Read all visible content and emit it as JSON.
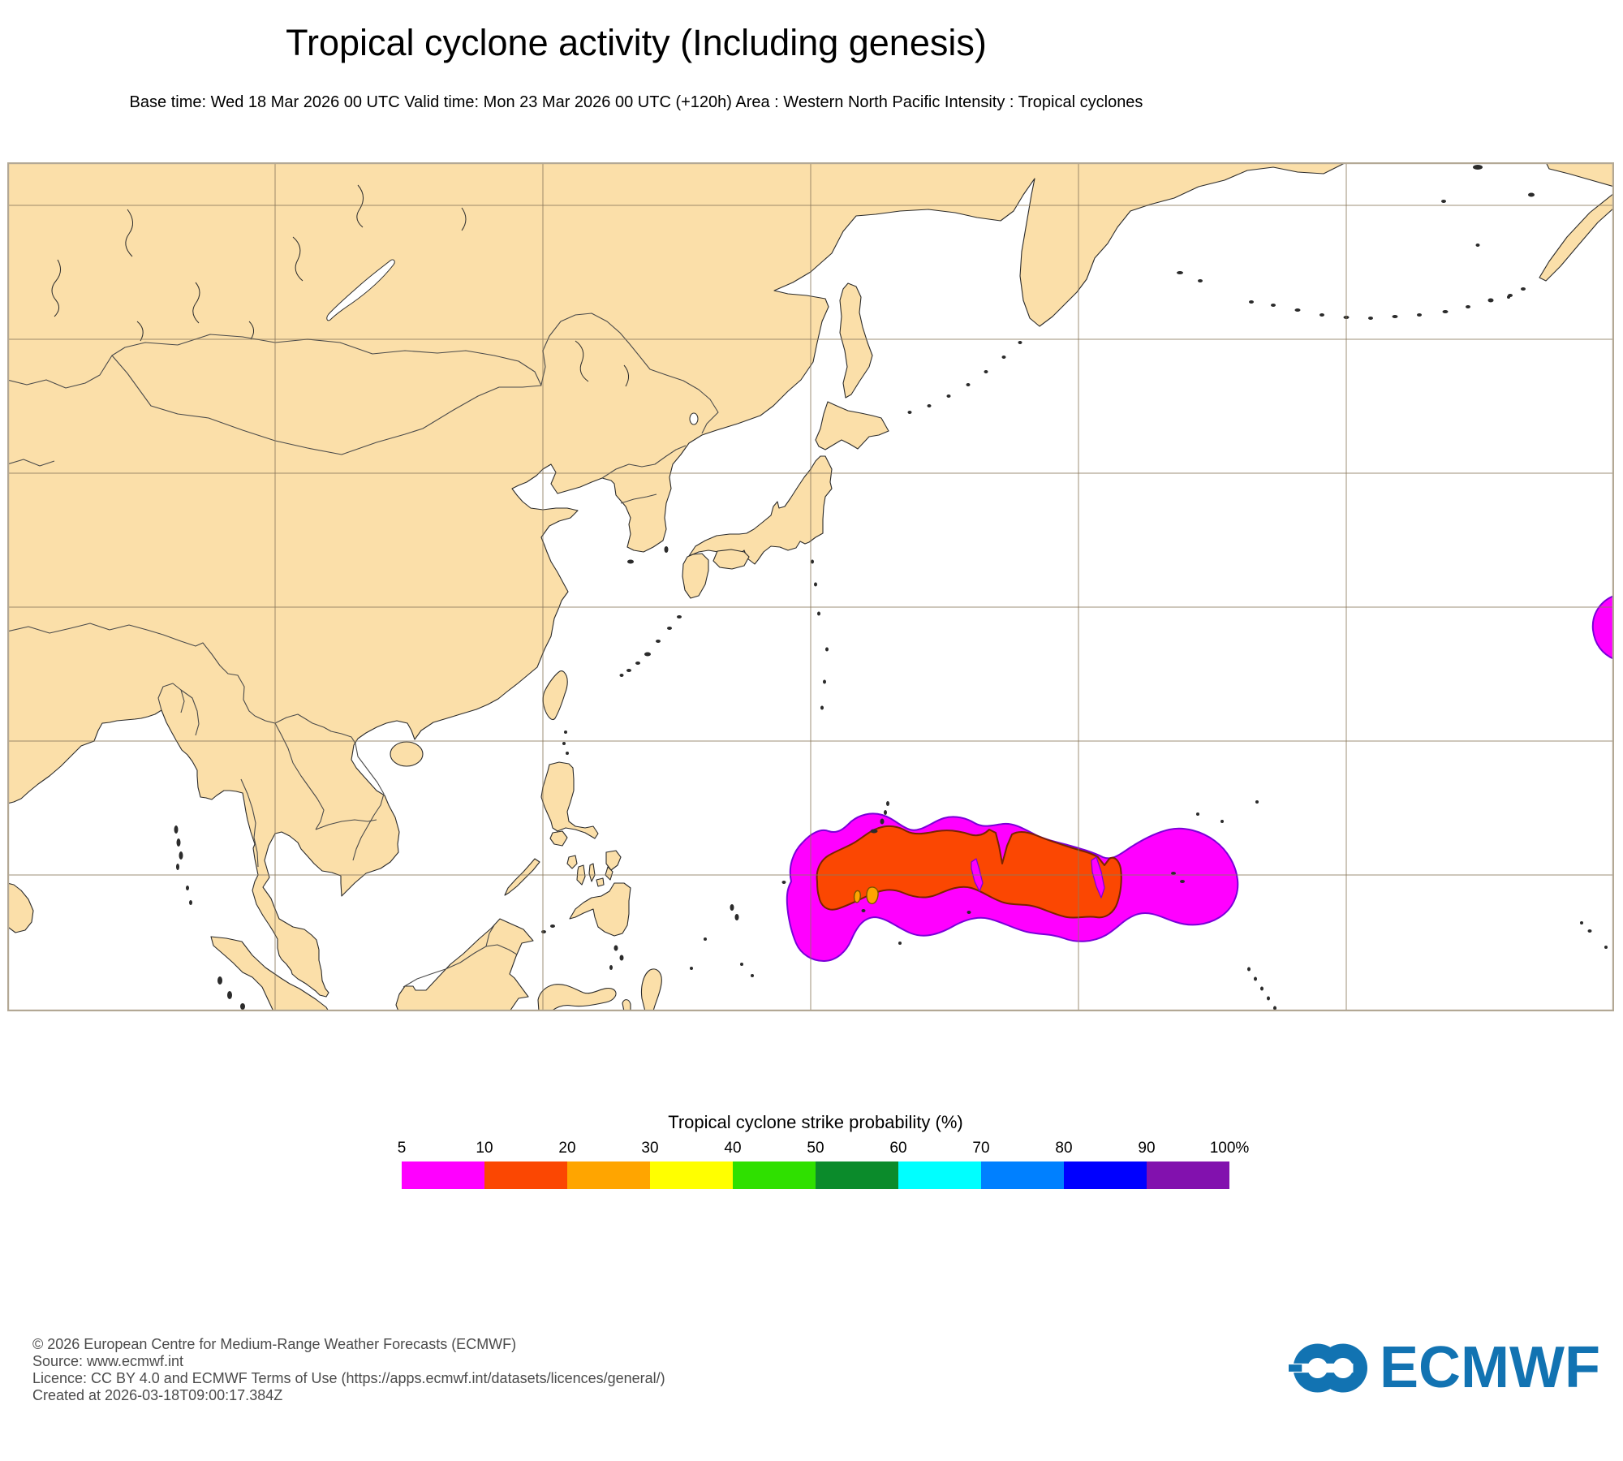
{
  "header": {
    "title": "Tropical cyclone activity (Including genesis)",
    "subtitle": "Base time: Wed 18 Mar 2026 00 UTC Valid time: Mon 23 Mar 2026 00 UTC (+120h) Area : Western North Pacific Intensity : Tropical cyclones"
  },
  "legend": {
    "title": "Tropical cyclone strike probability (%)",
    "ticks": [
      "5",
      "10",
      "20",
      "30",
      "40",
      "50",
      "60",
      "70",
      "80",
      "90",
      "100%"
    ],
    "bins": [
      {
        "label": "5-10",
        "color": "#ff00ff"
      },
      {
        "label": "10-20",
        "color": "#fb4702"
      },
      {
        "label": "20-30",
        "color": "#ffa500"
      },
      {
        "label": "30-40",
        "color": "#ffff00"
      },
      {
        "label": "40-50",
        "color": "#2fe000"
      },
      {
        "label": "50-60",
        "color": "#0b8b2b"
      },
      {
        "label": "60-70",
        "color": "#00ffff"
      },
      {
        "label": "70-80",
        "color": "#0080ff"
      },
      {
        "label": "80-90",
        "color": "#0000ff"
      },
      {
        "label": "90-100",
        "color": "#8211ae"
      }
    ]
  },
  "map": {
    "areas": [
      {
        "name": "strike-probability-5-10-percent",
        "color": "#ff00ff"
      },
      {
        "name": "strike-probability-10-20-percent",
        "color": "#fb4702"
      },
      {
        "name": "strike-probability-20-30-percent",
        "color": "#ffa500"
      }
    ]
  },
  "footer": {
    "lines": [
      "© 2026 European Centre for Medium-Range Weather Forecasts (ECMWF)",
      "Source: www.ecmwf.int",
      "Licence: CC BY 4.0 and ECMWF Terms of Use (https://apps.ecmwf.int/datasets/licences/general/)",
      "Created at 2026-03-18T09:00:17.384Z"
    ]
  },
  "logo": {
    "text": "ECMWF"
  },
  "colors": {
    "page_bg": "#ffffff",
    "text": "#000000",
    "footer_text": "#4b4b4b",
    "land": "#fbdfa9",
    "ocean": "#ffffff",
    "coastline": "#2b2b2b",
    "country_border": "#4a4a4a",
    "gridline": "#8c7b5e",
    "map_frame": "#b3a895",
    "prob_5_fill": "#ff00ff",
    "prob_5_outline": "#7a00d8",
    "prob_10_fill": "#fb4702",
    "prob_10_outline": "#7a2300",
    "prob_20_fill": "#ffa500",
    "prob_20_outline": "#7a5200",
    "logo_blue": "#1273b2"
  }
}
